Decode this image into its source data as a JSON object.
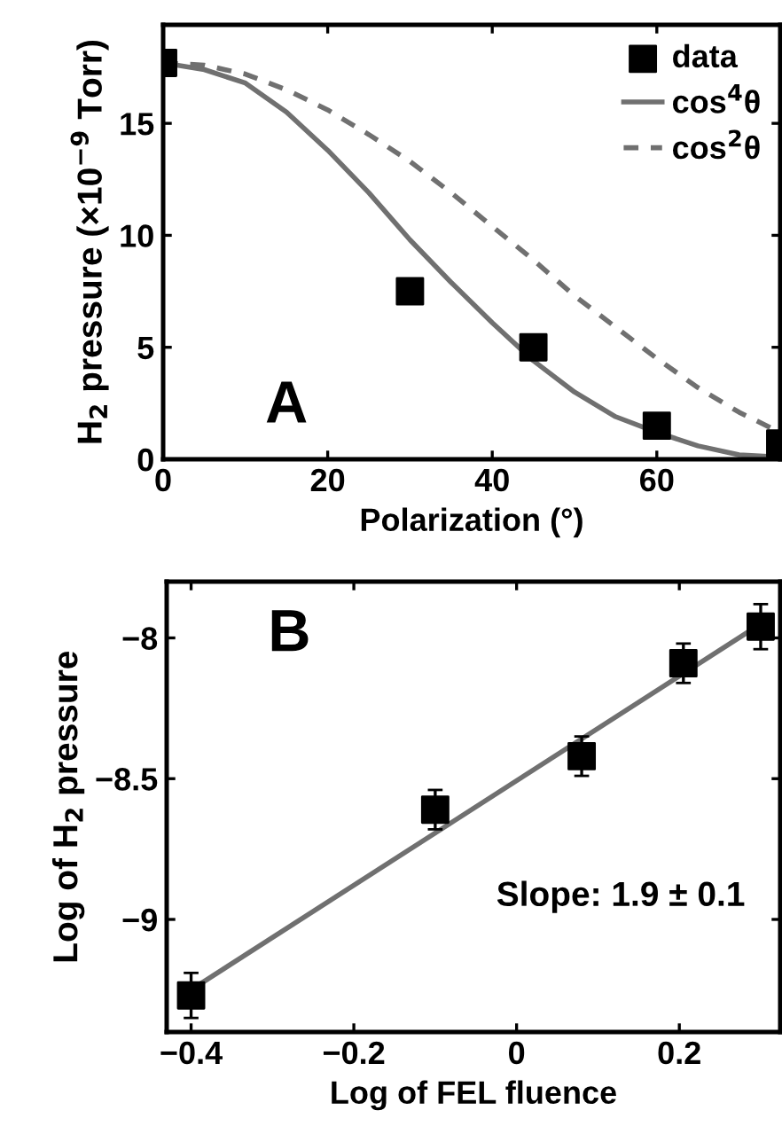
{
  "chart_data": [
    {
      "type": "scatter",
      "xlabel": "Polarization (°)",
      "ylabel": "H$_{2}$ pressure (×10$^{−9}$ Torr)",
      "annotations": [
        "A"
      ],
      "xlim": [
        0,
        75
      ],
      "xticks": [
        0,
        20,
        40,
        60
      ],
      "ylim": [
        0,
        19.4
      ],
      "yticks": [
        0,
        5,
        10,
        15
      ],
      "grid": false,
      "legend": "top right",
      "series": [
        {
          "name": "data",
          "marker": "square",
          "color": "#000000",
          "x": [
            0,
            30,
            45,
            60,
            75
          ],
          "values": [
            17.7,
            7.5,
            5.0,
            1.5,
            0.7
          ]
        },
        {
          "name": "cos$^{4}$θ",
          "type": "line",
          "line_style": "solid",
          "marker": "none",
          "color": "#707070",
          "x": [
            0,
            5,
            10,
            15,
            20,
            25,
            30,
            35,
            40,
            45,
            50,
            55,
            60,
            65,
            70,
            75
          ],
          "values": [
            17.7,
            17.4,
            16.8,
            15.5,
            13.8,
            11.9,
            9.8,
            7.9,
            6.1,
            4.4,
            3.0,
            1.9,
            1.2,
            0.6,
            0.2,
            0.1
          ]
        },
        {
          "name": "cos$^{2}$θ",
          "type": "line",
          "line_style": "dashed",
          "marker": "none",
          "color": "#707070",
          "x": [
            0,
            5,
            10,
            15,
            20,
            25,
            30,
            35,
            40,
            45,
            50,
            55,
            60,
            65,
            70,
            75
          ],
          "values": [
            17.7,
            17.6,
            17.2,
            16.5,
            15.6,
            14.5,
            13.3,
            11.9,
            10.4,
            8.9,
            7.3,
            5.9,
            4.5,
            3.2,
            2.1,
            1.2
          ]
        }
      ]
    },
    {
      "type": "scatter",
      "xlabel": "Log of FEL fluence",
      "ylabel": "Log of H$_{2}$ pressure",
      "annotations": [
        "B",
        "Slope: 1.9 ± 0.1"
      ],
      "xlim": [
        -0.43,
        0.324
      ],
      "xticks": [
        {
          "value": -0.4,
          "label": "−0.4"
        },
        {
          "value": -0.2,
          "label": "−0.2"
        },
        0,
        0.2
      ],
      "ylim": [
        -9.4,
        -7.8
      ],
      "yticks": [
        {
          "value": -9,
          "label": "−9"
        },
        {
          "value": -8.5,
          "label": "−8.5"
        },
        {
          "value": -8,
          "label": "−8"
        }
      ],
      "grid": false,
      "legend": false,
      "series": [
        {
          "type": "line",
          "line_style": "solid",
          "marker": "none",
          "color": "#707070",
          "x": [
            -0.4,
            0.3
          ],
          "values": [
            -9.25,
            -7.95
          ]
        },
        {
          "marker": "square",
          "color": "#000000",
          "x": [
            -0.4,
            -0.1,
            0.08,
            0.205,
            0.3
          ],
          "values": [
            -9.27,
            -8.61,
            -8.42,
            -8.09,
            -7.96
          ],
          "errors": [
            0.08,
            0.07,
            0.07,
            0.07,
            0.08
          ]
        }
      ]
    }
  ]
}
